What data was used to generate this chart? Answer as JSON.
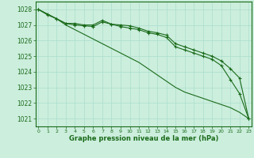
{
  "hours": [
    0,
    1,
    2,
    3,
    4,
    5,
    6,
    7,
    8,
    9,
    10,
    11,
    12,
    13,
    14,
    15,
    16,
    17,
    18,
    19,
    20,
    21,
    22,
    23
  ],
  "line_smooth": [
    1028.0,
    1027.7,
    1027.4,
    1027.0,
    1026.7,
    1026.4,
    1026.1,
    1025.8,
    1025.5,
    1025.2,
    1024.9,
    1024.6,
    1024.2,
    1023.8,
    1023.4,
    1023.0,
    1022.7,
    1022.5,
    1022.3,
    1022.1,
    1021.9,
    1021.7,
    1021.4,
    1021.0
  ],
  "line_marker1": [
    1028.0,
    1027.7,
    1027.4,
    1027.1,
    1027.1,
    1027.0,
    1027.0,
    1027.3,
    1027.05,
    1027.0,
    1026.95,
    1026.8,
    1026.6,
    1026.5,
    1026.35,
    1025.8,
    1025.6,
    1025.4,
    1025.2,
    1025.0,
    1024.7,
    1024.2,
    1023.6,
    1021.0
  ],
  "line_marker2": [
    1028.0,
    1027.65,
    1027.4,
    1027.1,
    1027.0,
    1026.95,
    1026.9,
    1027.2,
    1027.05,
    1026.9,
    1026.8,
    1026.7,
    1026.5,
    1026.4,
    1026.2,
    1025.6,
    1025.4,
    1025.2,
    1025.0,
    1024.8,
    1024.4,
    1023.5,
    1022.6,
    1021.0
  ],
  "line_color": "#1a6b1a",
  "bg_color": "#cceedd",
  "grid_color": "#aaddcc",
  "xlabel": "Graphe pression niveau de la mer (hPa)",
  "ylim": [
    1020.5,
    1028.5
  ],
  "yticks": [
    1021,
    1022,
    1023,
    1024,
    1025,
    1026,
    1027,
    1028
  ],
  "xticks": [
    0,
    1,
    2,
    3,
    4,
    5,
    6,
    7,
    8,
    9,
    10,
    11,
    12,
    13,
    14,
    15,
    16,
    17,
    18,
    19,
    20,
    21,
    22,
    23
  ],
  "xlim": [
    -0.3,
    23.3
  ]
}
